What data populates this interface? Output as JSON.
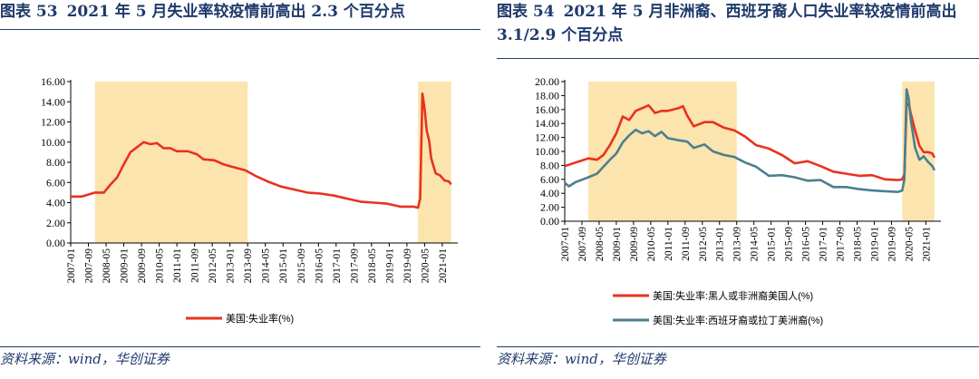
{
  "panels": [
    {
      "fig_no": "图表 53",
      "title": "2021 年 5 月失业率较疫情前高出 2.3 个百分点",
      "source": "资料来源：wind，华创证券"
    },
    {
      "fig_no": "图表 54",
      "title": "2021 年 5 月非洲裔、西班牙裔人口失业率较疫情前高出 3.1/2.9 个百分点",
      "source": "资料来源：wind，华创证券"
    }
  ],
  "colors": {
    "red": "#E8321E",
    "teal": "#4C7F8E",
    "shade": "#FBE4AE",
    "title": "#1F3A6B"
  },
  "chart_data": [
    {
      "type": "line",
      "ylim": [
        0,
        16
      ],
      "yticks": [
        "0.00",
        "2.00",
        "4.00",
        "6.00",
        "8.00",
        "10.00",
        "12.00",
        "14.00",
        "16.00"
      ],
      "xticks": [
        "2007-01",
        "2007-09",
        "2008-05",
        "2009-01",
        "2009-09",
        "2010-05",
        "2011-01",
        "2011-09",
        "2012-05",
        "2013-01",
        "2013-09",
        "2014-05",
        "2015-01",
        "2015-09",
        "2016-05",
        "2017-01",
        "2017-09",
        "2018-05",
        "2019-01",
        "2019-09",
        "2020-05",
        "2021-01"
      ],
      "shaded": [
        [
          "2007-12",
          "2013-09"
        ],
        [
          "2020-02",
          "2021-05"
        ]
      ],
      "series": [
        {
          "name": "美国:失业率(%)",
          "color": "#E8321E",
          "points": [
            [
              "2007-01",
              4.6
            ],
            [
              "2007-06",
              4.6
            ],
            [
              "2007-12",
              5.0
            ],
            [
              "2008-04",
              5.0
            ],
            [
              "2008-07",
              5.8
            ],
            [
              "2008-10",
              6.5
            ],
            [
              "2009-01",
              7.8
            ],
            [
              "2009-04",
              9.0
            ],
            [
              "2009-07",
              9.5
            ],
            [
              "2009-10",
              10.0
            ],
            [
              "2010-01",
              9.8
            ],
            [
              "2010-04",
              9.9
            ],
            [
              "2010-07",
              9.4
            ],
            [
              "2010-10",
              9.4
            ],
            [
              "2011-01",
              9.1
            ],
            [
              "2011-06",
              9.1
            ],
            [
              "2011-10",
              8.8
            ],
            [
              "2012-01",
              8.3
            ],
            [
              "2012-06",
              8.2
            ],
            [
              "2012-10",
              7.8
            ],
            [
              "2013-03",
              7.5
            ],
            [
              "2013-08",
              7.2
            ],
            [
              "2014-01",
              6.6
            ],
            [
              "2014-06",
              6.1
            ],
            [
              "2014-12",
              5.6
            ],
            [
              "2015-06",
              5.3
            ],
            [
              "2015-12",
              5.0
            ],
            [
              "2016-06",
              4.9
            ],
            [
              "2016-12",
              4.7
            ],
            [
              "2017-06",
              4.4
            ],
            [
              "2017-12",
              4.1
            ],
            [
              "2018-06",
              4.0
            ],
            [
              "2018-12",
              3.9
            ],
            [
              "2019-06",
              3.6
            ],
            [
              "2019-12",
              3.6
            ],
            [
              "2020-02",
              3.5
            ],
            [
              "2020-03",
              4.4
            ],
            [
              "2020-04",
              14.8
            ],
            [
              "2020-05",
              13.3
            ],
            [
              "2020-06",
              11.1
            ],
            [
              "2020-07",
              10.2
            ],
            [
              "2020-08",
              8.4
            ],
            [
              "2020-10",
              6.9
            ],
            [
              "2020-12",
              6.7
            ],
            [
              "2021-02",
              6.2
            ],
            [
              "2021-04",
              6.1
            ],
            [
              "2021-05",
              5.8
            ]
          ]
        }
      ]
    },
    {
      "type": "line",
      "ylim": [
        0,
        20
      ],
      "yticks": [
        "0.00",
        "2.00",
        "4.00",
        "6.00",
        "8.00",
        "10.00",
        "12.00",
        "14.00",
        "16.00",
        "18.00",
        "20.00"
      ],
      "xticks": [
        "2007-01",
        "2007-09",
        "2008-05",
        "2009-01",
        "2009-09",
        "2010-05",
        "2011-01",
        "2011-09",
        "2012-05",
        "2013-01",
        "2013-09",
        "2014-05",
        "2015-01",
        "2015-09",
        "2016-05",
        "2017-01",
        "2017-09",
        "2018-05",
        "2019-01",
        "2019-09",
        "2020-05",
        "2021-01"
      ],
      "shaded": [
        [
          "2007-12",
          "2013-09"
        ],
        [
          "2020-02",
          "2021-05"
        ]
      ],
      "series": [
        {
          "name": "美国:失业率:黑人或非洲裔美国人(%)",
          "color": "#E8321E",
          "points": [
            [
              "2007-01",
              7.9
            ],
            [
              "2007-06",
              8.4
            ],
            [
              "2007-12",
              9.0
            ],
            [
              "2008-04",
              8.8
            ],
            [
              "2008-07",
              9.5
            ],
            [
              "2008-10",
              10.9
            ],
            [
              "2009-01",
              12.6
            ],
            [
              "2009-04",
              15.0
            ],
            [
              "2009-07",
              14.5
            ],
            [
              "2009-10",
              15.8
            ],
            [
              "2010-01",
              16.2
            ],
            [
              "2010-04",
              16.6
            ],
            [
              "2010-07",
              15.5
            ],
            [
              "2010-10",
              15.8
            ],
            [
              "2011-01",
              15.8
            ],
            [
              "2011-06",
              16.2
            ],
            [
              "2011-08",
              16.5
            ],
            [
              "2011-10",
              15.1
            ],
            [
              "2012-01",
              13.6
            ],
            [
              "2012-06",
              14.2
            ],
            [
              "2012-10",
              14.2
            ],
            [
              "2013-03",
              13.4
            ],
            [
              "2013-08",
              13.0
            ],
            [
              "2014-01",
              12.1
            ],
            [
              "2014-06",
              10.9
            ],
            [
              "2014-12",
              10.4
            ],
            [
              "2015-06",
              9.5
            ],
            [
              "2015-12",
              8.3
            ],
            [
              "2016-06",
              8.6
            ],
            [
              "2016-12",
              7.9
            ],
            [
              "2017-06",
              7.1
            ],
            [
              "2017-12",
              6.8
            ],
            [
              "2018-06",
              6.5
            ],
            [
              "2018-12",
              6.6
            ],
            [
              "2019-06",
              6.0
            ],
            [
              "2019-12",
              5.9
            ],
            [
              "2020-02",
              6.0
            ],
            [
              "2020-03",
              6.7
            ],
            [
              "2020-04",
              16.7
            ],
            [
              "2020-05",
              16.8
            ],
            [
              "2020-06",
              15.4
            ],
            [
              "2020-08",
              13.0
            ],
            [
              "2020-10",
              10.8
            ],
            [
              "2020-12",
              9.9
            ],
            [
              "2021-02",
              9.9
            ],
            [
              "2021-04",
              9.7
            ],
            [
              "2021-05",
              9.1
            ]
          ]
        },
        {
          "name": "美国:失业率:西班牙裔或拉丁美洲裔(%)",
          "color": "#4C7F8E",
          "points": [
            [
              "2007-01",
              5.5
            ],
            [
              "2007-03",
              5.0
            ],
            [
              "2007-06",
              5.6
            ],
            [
              "2007-12",
              6.3
            ],
            [
              "2008-04",
              6.8
            ],
            [
              "2008-07",
              7.8
            ],
            [
              "2008-10",
              8.8
            ],
            [
              "2009-01",
              9.7
            ],
            [
              "2009-04",
              11.3
            ],
            [
              "2009-07",
              12.3
            ],
            [
              "2009-10",
              13.1
            ],
            [
              "2010-01",
              12.6
            ],
            [
              "2010-04",
              12.9
            ],
            [
              "2010-07",
              12.2
            ],
            [
              "2010-10",
              12.8
            ],
            [
              "2011-01",
              11.9
            ],
            [
              "2011-06",
              11.6
            ],
            [
              "2011-10",
              11.4
            ],
            [
              "2012-01",
              10.5
            ],
            [
              "2012-06",
              11.0
            ],
            [
              "2012-10",
              10.0
            ],
            [
              "2013-03",
              9.5
            ],
            [
              "2013-08",
              9.2
            ],
            [
              "2014-01",
              8.4
            ],
            [
              "2014-06",
              7.8
            ],
            [
              "2014-12",
              6.5
            ],
            [
              "2015-06",
              6.6
            ],
            [
              "2015-12",
              6.3
            ],
            [
              "2016-06",
              5.8
            ],
            [
              "2016-12",
              5.9
            ],
            [
              "2017-06",
              4.9
            ],
            [
              "2017-12",
              4.9
            ],
            [
              "2018-06",
              4.6
            ],
            [
              "2018-12",
              4.4
            ],
            [
              "2019-06",
              4.3
            ],
            [
              "2019-12",
              4.2
            ],
            [
              "2020-02",
              4.4
            ],
            [
              "2020-03",
              6.0
            ],
            [
              "2020-04",
              18.9
            ],
            [
              "2020-05",
              17.6
            ],
            [
              "2020-06",
              14.5
            ],
            [
              "2020-08",
              10.5
            ],
            [
              "2020-10",
              8.8
            ],
            [
              "2020-12",
              9.3
            ],
            [
              "2021-02",
              8.5
            ],
            [
              "2021-04",
              7.9
            ],
            [
              "2021-05",
              7.3
            ]
          ]
        }
      ]
    }
  ]
}
